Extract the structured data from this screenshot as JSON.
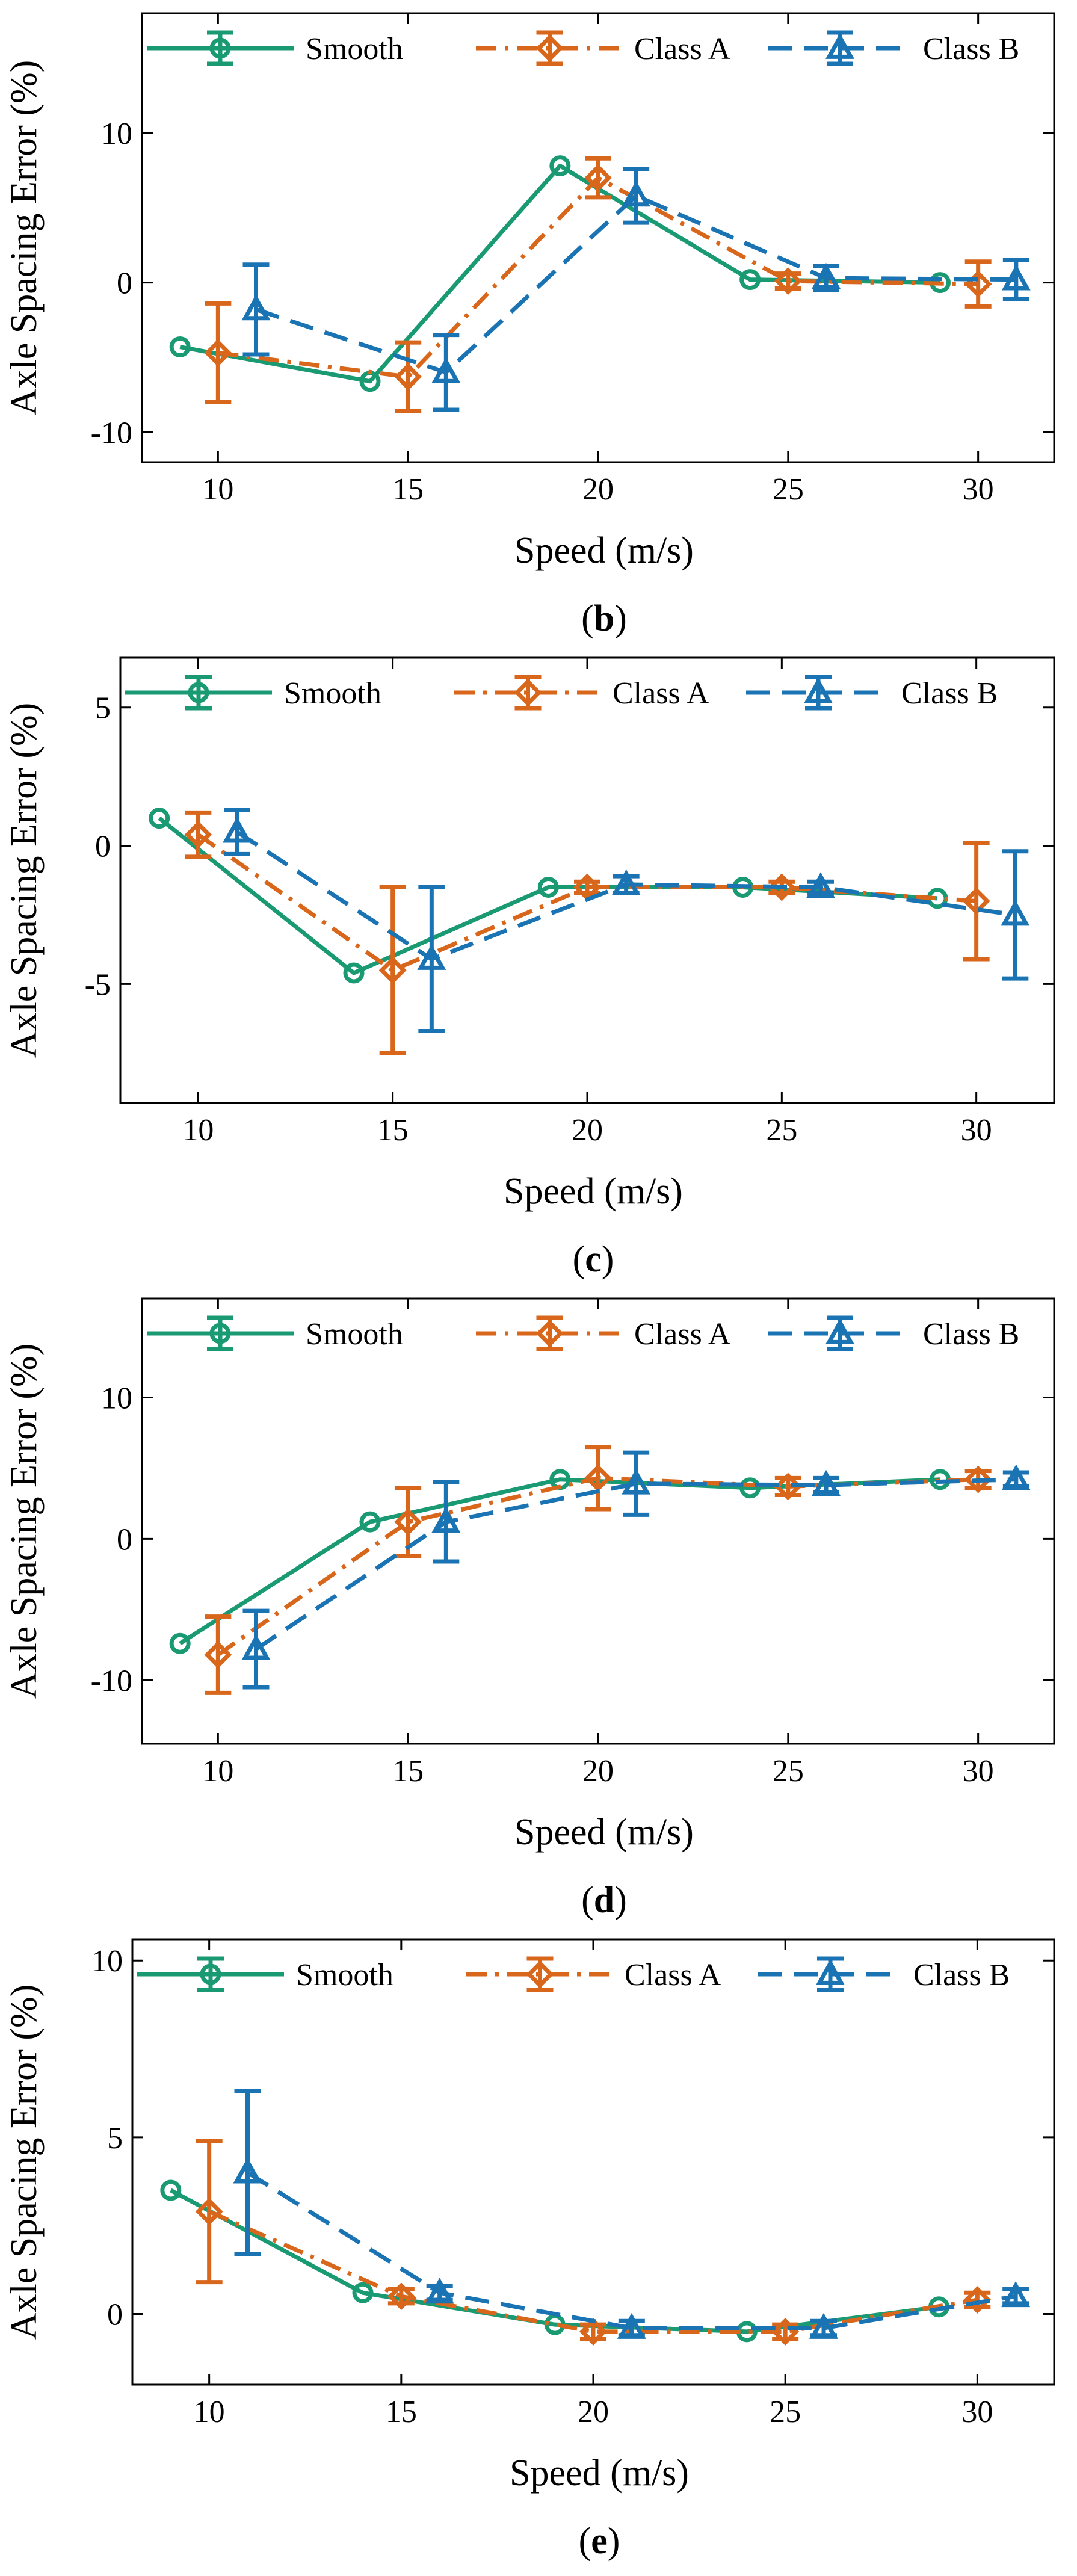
{
  "colors": {
    "smooth": "#1a9a72",
    "class_a": "#d8661b",
    "class_b": "#1a74b4",
    "axis": "#000000",
    "background": "#ffffff"
  },
  "chart_data": [
    {
      "type": "line",
      "panel_label": "b",
      "xlabel": "Speed (m/s)",
      "ylabel": "Axle Spacing Error (%)",
      "xlim": [
        8,
        32
      ],
      "ylim": [
        -12,
        18
      ],
      "xticks": [
        10,
        15,
        20,
        25,
        30
      ],
      "yticks": [
        -10,
        0,
        10
      ],
      "legend_position": "top",
      "series": [
        {
          "name": "Smooth",
          "marker": "circle",
          "style": "solid",
          "color_key": "smooth",
          "x": [
            9,
            14,
            19,
            24,
            29
          ],
          "values": [
            -4.3,
            -6.6,
            7.8,
            0.2,
            0.0
          ],
          "errors": [
            0,
            0,
            0,
            0,
            0
          ]
        },
        {
          "name": "Class A",
          "marker": "diamond",
          "style": "dashdot",
          "color_key": "class_a",
          "x": [
            10,
            15,
            20,
            25,
            30
          ],
          "values": [
            -4.7,
            -6.3,
            7.0,
            0.1,
            -0.1
          ],
          "errors": [
            3.3,
            2.3,
            1.3,
            0.5,
            1.5
          ]
        },
        {
          "name": "Class B",
          "marker": "triangle",
          "style": "dashed",
          "color_key": "class_b",
          "x": [
            11,
            16,
            21,
            26,
            31
          ],
          "values": [
            -1.8,
            -6.0,
            5.8,
            0.3,
            0.2
          ],
          "errors": [
            3.0,
            2.5,
            1.8,
            0.8,
            1.3
          ]
        }
      ]
    },
    {
      "type": "line",
      "panel_label": "c",
      "xlabel": "Speed (m/s)",
      "ylabel": "Axle Spacing Error (%)",
      "xlim": [
        8,
        32
      ],
      "ylim": [
        -9.3,
        6.8
      ],
      "xticks": [
        10,
        15,
        20,
        25,
        30
      ],
      "yticks": [
        -5,
        0,
        5
      ],
      "legend_position": "top",
      "series": [
        {
          "name": "Smooth",
          "marker": "circle",
          "style": "solid",
          "color_key": "smooth",
          "x": [
            9,
            14,
            19,
            24,
            29
          ],
          "values": [
            1.0,
            -4.6,
            -1.5,
            -1.5,
            -1.9
          ],
          "errors": [
            0,
            0,
            0,
            0,
            0
          ]
        },
        {
          "name": "Class A",
          "marker": "diamond",
          "style": "dashdot",
          "color_key": "class_a",
          "x": [
            10,
            15,
            20,
            25,
            30
          ],
          "values": [
            0.4,
            -4.5,
            -1.5,
            -1.5,
            -2.0
          ],
          "errors": [
            0.8,
            3.0,
            0.2,
            0.2,
            2.1
          ]
        },
        {
          "name": "Class B",
          "marker": "triangle",
          "style": "dashed",
          "color_key": "class_b",
          "x": [
            11,
            16,
            21,
            26,
            31
          ],
          "values": [
            0.5,
            -4.1,
            -1.4,
            -1.5,
            -2.5
          ],
          "errors": [
            0.8,
            2.6,
            0.3,
            0.2,
            2.3
          ]
        }
      ]
    },
    {
      "type": "line",
      "panel_label": "d",
      "xlabel": "Speed (m/s)",
      "ylabel": "Axle Spacing Error (%)",
      "xlim": [
        8,
        32
      ],
      "ylim": [
        -14.5,
        17
      ],
      "xticks": [
        10,
        15,
        20,
        25,
        30
      ],
      "yticks": [
        -10,
        0,
        10
      ],
      "legend_position": "top",
      "series": [
        {
          "name": "Smooth",
          "marker": "circle",
          "style": "solid",
          "color_key": "smooth",
          "x": [
            9,
            14,
            19,
            24,
            29
          ],
          "values": [
            -7.4,
            1.2,
            4.2,
            3.6,
            4.2
          ],
          "errors": [
            0,
            0,
            0,
            0,
            0
          ]
        },
        {
          "name": "Class A",
          "marker": "diamond",
          "style": "dashdot",
          "color_key": "class_a",
          "x": [
            10,
            15,
            20,
            25,
            30
          ],
          "values": [
            -8.2,
            1.2,
            4.3,
            3.7,
            4.2
          ],
          "errors": [
            2.7,
            2.4,
            2.2,
            0.6,
            0.6
          ]
        },
        {
          "name": "Class B",
          "marker": "triangle",
          "style": "dashed",
          "color_key": "class_b",
          "x": [
            11,
            16,
            21,
            26,
            31
          ],
          "values": [
            -7.8,
            1.2,
            3.9,
            3.8,
            4.2
          ],
          "errors": [
            2.7,
            2.8,
            2.2,
            0.5,
            0.5
          ]
        }
      ]
    },
    {
      "type": "line",
      "panel_label": "e",
      "xlabel": "Speed (m/s)",
      "ylabel": "Axle Spacing Error (%)",
      "xlim": [
        8,
        32
      ],
      "ylim": [
        -2,
        10.6
      ],
      "xticks": [
        10,
        15,
        20,
        25,
        30
      ],
      "yticks": [
        0,
        5,
        10
      ],
      "legend_position": "top",
      "series": [
        {
          "name": "Smooth",
          "marker": "circle",
          "style": "solid",
          "color_key": "smooth",
          "x": [
            9,
            14,
            19,
            24,
            29
          ],
          "values": [
            3.5,
            0.6,
            -0.3,
            -0.5,
            0.2
          ],
          "errors": [
            0,
            0,
            0,
            0,
            0
          ]
        },
        {
          "name": "Class A",
          "marker": "diamond",
          "style": "dashdot",
          "color_key": "class_a",
          "x": [
            10,
            15,
            20,
            25,
            30
          ],
          "values": [
            2.9,
            0.5,
            -0.5,
            -0.5,
            0.4
          ],
          "errors": [
            2.0,
            0.2,
            0.2,
            0.2,
            0.2
          ]
        },
        {
          "name": "Class B",
          "marker": "triangle",
          "style": "dashed",
          "color_key": "class_b",
          "x": [
            11,
            16,
            21,
            26,
            31
          ],
          "values": [
            4.0,
            0.6,
            -0.4,
            -0.4,
            0.5
          ],
          "errors": [
            2.3,
            0.2,
            0.2,
            0.2,
            0.2
          ]
        }
      ]
    }
  ]
}
